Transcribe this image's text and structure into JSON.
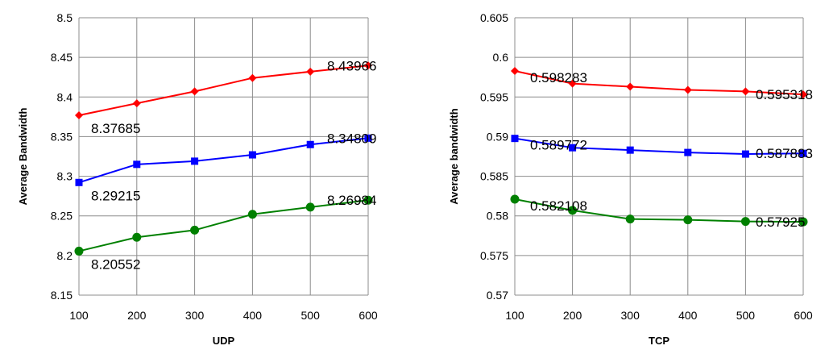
{
  "chart_data": [
    {
      "type": "line",
      "xlabel": "UDP",
      "ylabel": "Average Bandwidth",
      "x": [
        100,
        200,
        300,
        400,
        500,
        600
      ],
      "x_tick_labels": [
        "100",
        "200",
        "300",
        "400",
        "500",
        "600"
      ],
      "ylim": [
        8.15,
        8.5
      ],
      "y_ticks": [
        8.15,
        8.2,
        8.25,
        8.3,
        8.35,
        8.4,
        8.45,
        8.5
      ],
      "y_tick_labels": [
        "8.15",
        "8.2",
        "8.25",
        "8.3",
        "8.35",
        "8.4",
        "8.45",
        "8.5"
      ],
      "grid": true,
      "series": [
        {
          "color": "#ff0000",
          "marker": "diamond",
          "values": [
            8.37685,
            8.392,
            8.407,
            8.424,
            8.432,
            8.43966
          ],
          "labels": [
            "8.37685",
            "",
            "",
            "",
            "",
            "8.43966"
          ]
        },
        {
          "color": "#0000ff",
          "marker": "square",
          "values": [
            8.29215,
            8.315,
            8.319,
            8.327,
            8.34,
            8.34809
          ],
          "labels": [
            "8.29215",
            "",
            "",
            "",
            "",
            "8.34809"
          ]
        },
        {
          "color": "#008000",
          "marker": "circle",
          "values": [
            8.20552,
            8.223,
            8.232,
            8.252,
            8.261,
            8.26984
          ],
          "labels": [
            "8.20552",
            "",
            "",
            "",
            "",
            "8.26984"
          ]
        }
      ]
    },
    {
      "type": "line",
      "xlabel": "TCP",
      "ylabel": "Average bandwidth",
      "x": [
        100,
        200,
        300,
        400,
        500,
        600
      ],
      "x_tick_labels": [
        "100",
        "200",
        "300",
        "400",
        "500",
        "600"
      ],
      "ylim": [
        0.57,
        0.605
      ],
      "y_ticks": [
        0.57,
        0.575,
        0.58,
        0.585,
        0.59,
        0.595,
        0.6,
        0.605
      ],
      "y_tick_labels": [
        "0.57",
        "0.575",
        "0.58",
        "0.585",
        "0.59",
        "0.595",
        "0.6",
        "0.605"
      ],
      "grid": true,
      "series": [
        {
          "color": "#ff0000",
          "marker": "diamond",
          "values": [
            0.598283,
            0.5967,
            0.5963,
            0.5959,
            0.5957,
            0.595318
          ],
          "labels": [
            "0.598283",
            "",
            "",
            "",
            "",
            "0.595318"
          ]
        },
        {
          "color": "#0000ff",
          "marker": "square",
          "values": [
            0.589772,
            0.5886,
            0.5883,
            0.588,
            0.5878,
            0.587883
          ],
          "labels": [
            "0.589772",
            "",
            "",
            "",
            "",
            "0.587883"
          ]
        },
        {
          "color": "#008000",
          "marker": "circle",
          "values": [
            0.582108,
            0.5807,
            0.5796,
            0.5795,
            0.5793,
            0.57925
          ],
          "labels": [
            "0.582108",
            "",
            "",
            "",
            "",
            "0.57925"
          ]
        }
      ]
    }
  ]
}
